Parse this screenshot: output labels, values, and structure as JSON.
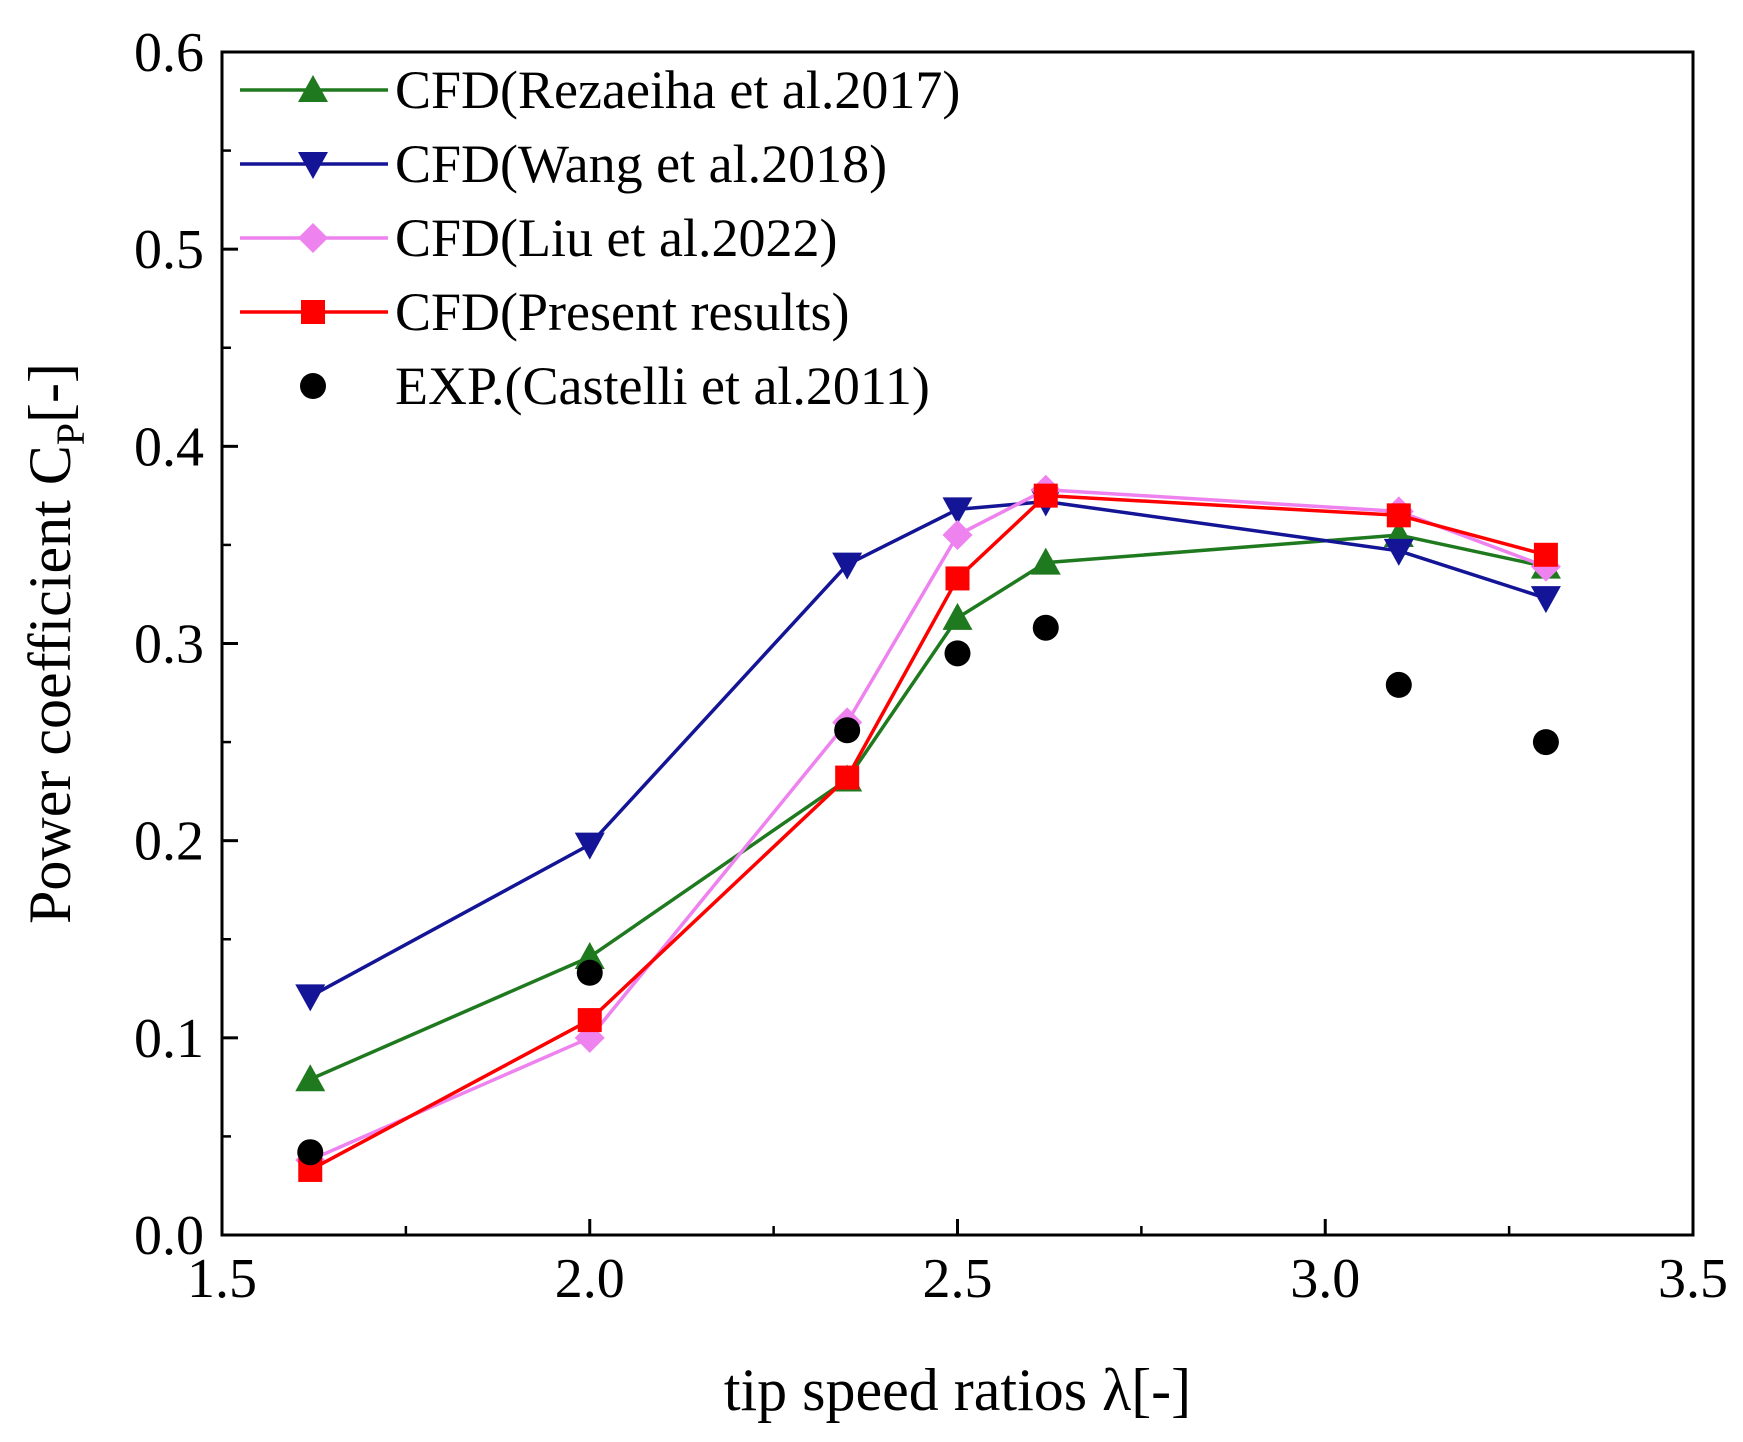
{
  "chart_data": {
    "type": "line",
    "title": "",
    "xlabel": "tip speed ratios λ[-]",
    "ylabel": {
      "main": "Power coefficient C",
      "sub": "P",
      "suffix": "[-]"
    },
    "xlim": [
      1.5,
      3.5
    ],
    "ylim": [
      0.0,
      0.6
    ],
    "xticks": [
      1.5,
      2.0,
      2.5,
      3.0,
      3.5
    ],
    "xtick_labels": [
      "1.5",
      "2.0",
      "2.5",
      "3.0",
      "3.5"
    ],
    "yticks": [
      0.0,
      0.1,
      0.2,
      0.3,
      0.4,
      0.5,
      0.6
    ],
    "ytick_labels": [
      "0.0",
      "0.1",
      "0.2",
      "0.3",
      "0.4",
      "0.5",
      "0.6"
    ],
    "grid": false,
    "legend_position": "top-left",
    "series": [
      {
        "name": "CFD(Rezaeiha et al.2017)",
        "color": "#1f7a1f",
        "marker": "triangle-up",
        "line": true,
        "x": [
          1.62,
          2.0,
          2.35,
          2.5,
          2.62,
          3.1,
          3.3
        ],
        "y": [
          0.079,
          0.141,
          0.231,
          0.313,
          0.341,
          0.355,
          0.339
        ]
      },
      {
        "name": "CFD(Wang et al.2018)",
        "color": "#141496",
        "marker": "triangle-down",
        "line": true,
        "x": [
          1.62,
          2.0,
          2.35,
          2.5,
          2.62,
          3.1,
          3.3
        ],
        "y": [
          0.121,
          0.198,
          0.34,
          0.368,
          0.372,
          0.347,
          0.323
        ]
      },
      {
        "name": "CFD(Liu et al.2022)",
        "color": "#ee82ee",
        "marker": "diamond",
        "line": true,
        "x": [
          1.62,
          2.0,
          2.35,
          2.5,
          2.62,
          3.1,
          3.3
        ],
        "y": [
          0.038,
          0.1,
          0.26,
          0.355,
          0.378,
          0.367,
          0.339
        ]
      },
      {
        "name": "CFD(Present results)",
        "color": "#ff0000",
        "marker": "square",
        "line": true,
        "x": [
          1.62,
          2.0,
          2.35,
          2.5,
          2.62,
          3.1,
          3.3
        ],
        "y": [
          0.033,
          0.109,
          0.232,
          0.333,
          0.375,
          0.365,
          0.345
        ]
      },
      {
        "name": "EXP.(Castelli et al.2011)",
        "color": "#000000",
        "marker": "circle",
        "line": false,
        "x": [
          1.62,
          2.0,
          2.35,
          2.5,
          2.62,
          3.1,
          3.3
        ],
        "y": [
          0.042,
          0.133,
          0.256,
          0.295,
          0.308,
          0.279,
          0.25
        ]
      }
    ]
  }
}
